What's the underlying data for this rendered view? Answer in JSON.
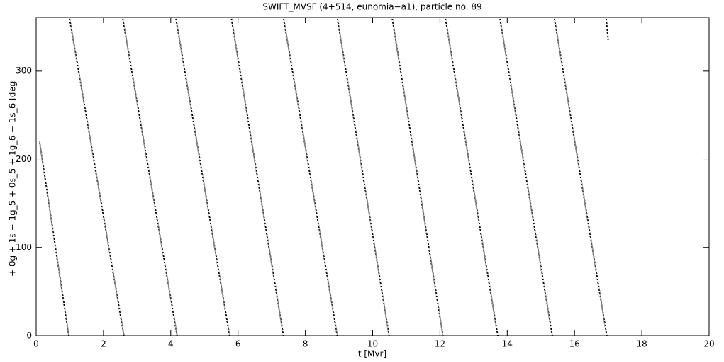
{
  "chart_data": {
    "type": "line",
    "title": "SWIFT_MVSF (4+514, eunomia−a1), particle no. 89",
    "xlabel": "t [Myr]",
    "ylabel": "+ 0g + 1s − 1g_5 + 0s_5 + 1g_6 − 1s_6 [deg]",
    "x": [
      0.1,
      0.97,
      0.98,
      0.99,
      2.61,
      2.59,
      2.57,
      4.19,
      4.17,
      4.15,
      5.75,
      5.78,
      5.8,
      7.35,
      7.35,
      7.35,
      8.95,
      8.95,
      8.95,
      10.49,
      10.53,
      10.58,
      12.09,
      12.12,
      12.16,
      13.72,
      13.75,
      13.78,
      15.34,
      15.37,
      15.4,
      16.96,
      16.95,
      16.94,
      17.0
    ],
    "series": [
      {
        "name": "particle no. 89",
        "color": "#000000",
        "values": [
          220,
          0,
          null,
          360,
          0,
          null,
          360,
          0,
          null,
          360,
          0,
          null,
          360,
          0,
          null,
          360,
          0,
          null,
          360,
          0,
          null,
          360,
          0,
          null,
          360,
          0,
          null,
          360,
          0,
          null,
          360,
          0,
          null,
          360,
          335
        ]
      }
    ],
    "xlim": [
      0,
      20
    ],
    "xticks": [
      0,
      2,
      4,
      6,
      8,
      10,
      12,
      14,
      16,
      18,
      20
    ],
    "ylim": [
      0,
      360
    ],
    "yticks": [
      0,
      100,
      200,
      300
    ]
  }
}
